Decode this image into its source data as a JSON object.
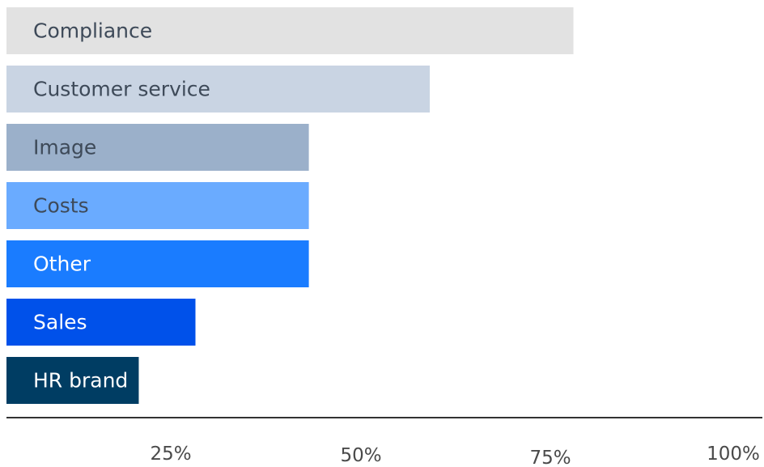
{
  "chart_data": {
    "type": "bar",
    "orientation": "horizontal",
    "categories": [
      "Compliance",
      "Customer service",
      "Image",
      "Costs",
      "Other",
      "Sales",
      "HR brand"
    ],
    "values": [
      75,
      56,
      40,
      40,
      40,
      25,
      17.5
    ],
    "colors": [
      "#e2e2e2",
      "#c9d4e3",
      "#9bb0ca",
      "#6aabff",
      "#1a7cff",
      "#0051ea",
      "#003d63"
    ],
    "label_colors": [
      "#3e4a59",
      "#3e4a59",
      "#3e4a59",
      "#3e4a59",
      "#ffffff",
      "#ffffff",
      "#ffffff"
    ],
    "x_ticks": [
      "25%",
      "50%",
      "75%",
      "100%"
    ],
    "xlim": [
      0,
      100
    ],
    "grid": false,
    "legend": "none"
  }
}
